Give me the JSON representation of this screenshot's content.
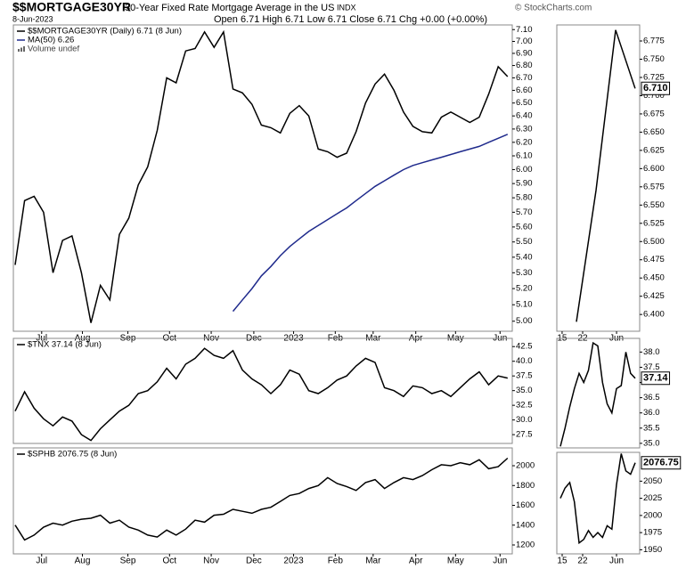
{
  "header": {
    "symbol": "$$MORTGAGE30YR",
    "description": "30-Year Fixed Rate Mortgage Average in the US",
    "exchange": "INDX",
    "copyright": "© StockCharts.com",
    "date": "8-Jun-2023",
    "quote": "Open 6.71 High 6.71 Low 6.71 Close 6.71 Chg +0.00 (+0.00%)"
  },
  "chart_data": [
    {
      "type": "line",
      "log": true,
      "volume_note": "Volume undef",
      "series": [
        {
          "name": "$$MORTGAGE30YR (Daily) 6.71 (8 Jun)",
          "color": "#000000",
          "values": [
            5.35,
            5.78,
            5.81,
            5.7,
            5.3,
            5.51,
            5.54,
            5.3,
            4.99,
            5.22,
            5.13,
            5.55,
            5.66,
            5.89,
            6.02,
            6.29,
            6.7,
            6.66,
            6.92,
            6.94,
            7.08,
            6.95,
            7.08,
            6.61,
            6.58,
            6.49,
            6.33,
            6.31,
            6.27,
            6.42,
            6.48,
            6.4,
            6.15,
            6.13,
            6.09,
            6.12,
            6.28,
            6.5,
            6.65,
            6.73,
            6.6,
            6.43,
            6.32,
            6.28,
            6.27,
            6.39,
            6.43,
            6.39,
            6.35,
            6.39,
            6.57,
            6.79,
            6.71
          ]
        },
        {
          "name": "MA(50) 6.26",
          "color": "#1f2a8c",
          "values": [
            null,
            null,
            null,
            null,
            null,
            null,
            null,
            null,
            null,
            null,
            null,
            null,
            null,
            null,
            null,
            null,
            null,
            null,
            null,
            null,
            null,
            null,
            null,
            5.06,
            5.13,
            5.2,
            5.28,
            5.34,
            5.41,
            5.47,
            5.52,
            5.57,
            5.61,
            5.65,
            5.69,
            5.73,
            5.78,
            5.83,
            5.88,
            5.92,
            5.96,
            6.0,
            6.03,
            6.05,
            6.07,
            6.09,
            6.11,
            6.13,
            6.15,
            6.17,
            6.2,
            6.23,
            6.26
          ]
        }
      ],
      "xlim": [
        -0.19,
        52.49
      ],
      "xticks": [
        {
          "value": 2.8,
          "label": "Jul"
        },
        {
          "value": 7.1,
          "label": "Aug"
        },
        {
          "value": 11.9,
          "label": "Sep"
        },
        {
          "value": 16.3,
          "label": "Oct"
        },
        {
          "value": 20.7,
          "label": "Nov"
        },
        {
          "value": 25.2,
          "label": "Dec"
        },
        {
          "value": 29.4,
          "label": "2023"
        },
        {
          "value": 33.8,
          "label": "Feb"
        },
        {
          "value": 37.8,
          "label": "Mar"
        },
        {
          "value": 42.3,
          "label": "Apr"
        },
        {
          "value": 46.5,
          "label": "May"
        },
        {
          "value": 51.2,
          "label": "Jun"
        }
      ],
      "ylim": [
        4.94,
        7.14
      ],
      "yticks": [
        {
          "value": 5.0,
          "label": "5.00"
        },
        {
          "value": 5.1,
          "label": "5.10"
        },
        {
          "value": 5.2,
          "label": "5.20"
        },
        {
          "value": 5.3,
          "label": "5.30"
        },
        {
          "value": 5.4,
          "label": "5.40"
        },
        {
          "value": 5.5,
          "label": "5.50"
        },
        {
          "value": 5.6,
          "label": "5.60"
        },
        {
          "value": 5.7,
          "label": "5.70"
        },
        {
          "value": 5.8,
          "label": "5.80"
        },
        {
          "value": 5.9,
          "label": "5.90"
        },
        {
          "value": 6.0,
          "label": "6.00"
        },
        {
          "value": 6.1,
          "label": "6.10"
        },
        {
          "value": 6.2,
          "label": "6.20"
        },
        {
          "value": 6.3,
          "label": "6.30"
        },
        {
          "value": 6.4,
          "label": "6.40"
        },
        {
          "value": 6.5,
          "label": "6.50"
        },
        {
          "value": 6.6,
          "label": "6.60"
        },
        {
          "value": 6.7,
          "label": "6.70"
        },
        {
          "value": 6.8,
          "label": "6.80"
        },
        {
          "value": 6.9,
          "label": "6.90"
        },
        {
          "value": 7.0,
          "label": "7.00"
        },
        {
          "value": 7.1,
          "label": "7.10"
        }
      ]
    },
    {
      "type": "line",
      "value_box": true,
      "series": [
        {
          "color": "#000000",
          "values": [
            6.39,
            6.57,
            6.79,
            6.71
          ],
          "value_labels": [
            null,
            null,
            null,
            "6.710"
          ]
        }
      ],
      "xlim": [
        -1.0,
        3.23
      ],
      "xticks": [
        {
          "value": -0.73,
          "label": "15"
        },
        {
          "value": 0.32,
          "label": "22"
        },
        {
          "value": 2.05,
          "label": "Jun"
        }
      ],
      "ylim": [
        6.377,
        6.797
      ],
      "yticks": [
        {
          "value": 6.4,
          "label": "6.400"
        },
        6.425,
        {
          "value": 6.45,
          "label": "6.450"
        },
        6.475,
        {
          "value": 6.5,
          "label": "6.500"
        },
        6.525,
        {
          "value": 6.55,
          "label": "6.550"
        },
        6.575,
        {
          "value": 6.6,
          "label": "6.600"
        },
        6.625,
        {
          "value": 6.65,
          "label": "6.650"
        },
        6.675,
        {
          "value": 6.7,
          "label": "6.700"
        },
        6.725,
        {
          "value": 6.75,
          "label": "6.750"
        },
        6.775
      ]
    },
    {
      "type": "line",
      "series": [
        {
          "name": "$TNX 37.14 (8 Jun)",
          "color": "#000000",
          "values": [
            31.5,
            34.8,
            32.0,
            30.2,
            29.0,
            30.5,
            29.8,
            27.5,
            26.5,
            28.5,
            30.0,
            31.5,
            32.5,
            34.5,
            35.0,
            36.5,
            38.8,
            37.0,
            39.5,
            40.5,
            42.2,
            41.0,
            40.5,
            41.8,
            38.5,
            37.0,
            36.0,
            34.5,
            36.0,
            38.5,
            37.8,
            35.0,
            34.5,
            35.5,
            36.8,
            37.5,
            39.2,
            40.5,
            39.8,
            35.5,
            35.0,
            34.0,
            35.8,
            35.5,
            34.5,
            35.0,
            34.0,
            35.5,
            37.0,
            38.2,
            36.0,
            37.5,
            37.14
          ]
        }
      ],
      "xlim": [
        -0.19,
        52.49
      ],
      "ylim": [
        26,
        43.9
      ],
      "yticks": [
        27.5,
        {
          "value": 30,
          "label": "30.0"
        },
        32.5,
        {
          "value": 35,
          "label": "35.0"
        },
        37.5,
        {
          "value": 40,
          "label": "40.0"
        },
        42.5
      ]
    },
    {
      "type": "line",
      "value_box": true,
      "series": [
        {
          "color": "#000000",
          "values": [
            34.9,
            35.5,
            36.2,
            36.8,
            37.3,
            37.0,
            37.4,
            38.3,
            38.2,
            37.0,
            36.3,
            36.0,
            36.8,
            36.9,
            38.0,
            37.3,
            37.14
          ],
          "value_labels": [
            null,
            null,
            null,
            null,
            null,
            null,
            null,
            null,
            null,
            null,
            null,
            null,
            null,
            null,
            null,
            null,
            "37.14"
          ]
        }
      ],
      "xlim": [
        -0.76,
        16.95
      ],
      "ylim": [
        34.85,
        38.45
      ],
      "yticks": [
        {
          "value": 35,
          "label": "35.0"
        },
        35.5,
        {
          "value": 36,
          "label": "36.0"
        },
        36.5,
        {
          "value": 37,
          "label": "37.0"
        },
        37.5,
        {
          "value": 38,
          "label": "38.0"
        }
      ]
    },
    {
      "type": "line",
      "series": [
        {
          "name": "$SPHB 2076.75 (8 Jun)",
          "color": "#000000",
          "values": [
            1400,
            1250,
            1300,
            1380,
            1420,
            1400,
            1440,
            1460,
            1470,
            1500,
            1420,
            1450,
            1380,
            1350,
            1300,
            1280,
            1350,
            1300,
            1360,
            1450,
            1430,
            1500,
            1510,
            1560,
            1540,
            1520,
            1560,
            1580,
            1640,
            1700,
            1720,
            1770,
            1800,
            1880,
            1820,
            1790,
            1750,
            1830,
            1860,
            1770,
            1830,
            1880,
            1860,
            1900,
            1960,
            2010,
            2000,
            2030,
            2010,
            2060,
            1970,
            1990,
            2076.75
          ]
        }
      ],
      "xlim": [
        -0.19,
        52.49
      ],
      "xticks": [
        {
          "value": 2.8,
          "label": "Jul"
        },
        {
          "value": 7.1,
          "label": "Aug"
        },
        {
          "value": 11.9,
          "label": "Sep"
        },
        {
          "value": 16.3,
          "label": "Oct"
        },
        {
          "value": 20.7,
          "label": "Nov"
        },
        {
          "value": 25.2,
          "label": "Dec"
        },
        {
          "value": 29.4,
          "label": "2023"
        },
        {
          "value": 33.8,
          "label": "Feb"
        },
        {
          "value": 37.8,
          "label": "Mar"
        },
        {
          "value": 42.3,
          "label": "Apr"
        },
        {
          "value": 46.5,
          "label": "May"
        },
        {
          "value": 51.2,
          "label": "Jun"
        }
      ],
      "ylim": [
        1110,
        2180
      ],
      "yticks": [
        1200,
        1400,
        1600,
        1800,
        2000
      ]
    },
    {
      "type": "line",
      "value_box": true,
      "series": [
        {
          "color": "#000000",
          "values": [
            2025,
            2040,
            2048,
            2020,
            1960,
            1965,
            1978,
            1968,
            1975,
            1968,
            1985,
            1980,
            2045,
            2090,
            2065,
            2060,
            2076.75
          ],
          "value_labels": [
            null,
            null,
            null,
            null,
            null,
            null,
            null,
            null,
            null,
            null,
            null,
            null,
            null,
            null,
            null,
            null,
            "2076.75"
          ]
        }
      ],
      "xlim": [
        -0.76,
        16.95
      ],
      "xticks": [
        {
          "value": 0.38,
          "label": "15"
        },
        {
          "value": 4.76,
          "label": "22"
        },
        {
          "value": 12.0,
          "label": "Jun"
        }
      ],
      "ylim": [
        1944,
        2092
      ],
      "yticks": [
        1950,
        1975,
        2000,
        2025,
        2050
      ]
    }
  ]
}
